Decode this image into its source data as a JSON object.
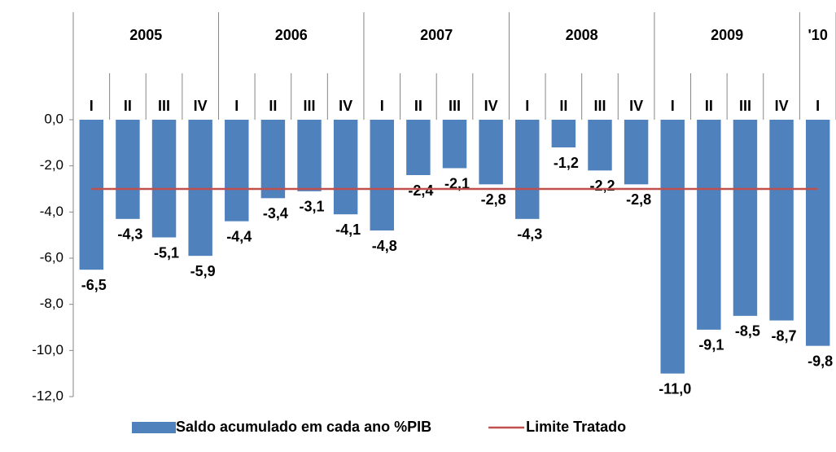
{
  "chart_data": {
    "type": "bar",
    "groups": [
      {
        "label": "2005",
        "categories": [
          "I",
          "II",
          "III",
          "IV"
        ]
      },
      {
        "label": "2006",
        "categories": [
          "I",
          "II",
          "III",
          "IV"
        ]
      },
      {
        "label": "2007",
        "categories": [
          "I",
          "II",
          "III",
          "IV"
        ]
      },
      {
        "label": "2008",
        "categories": [
          "I",
          "II",
          "III",
          "IV"
        ]
      },
      {
        "label": "2009",
        "categories": [
          "I",
          "II",
          "III",
          "IV"
        ]
      },
      {
        "label": "'10",
        "categories": [
          "I"
        ]
      }
    ],
    "series": [
      {
        "name": "Saldo acumulado em cada ano %PIB",
        "type": "bar",
        "color": "#4f81bd",
        "values": [
          -6.5,
          -4.3,
          -5.1,
          -5.9,
          -4.4,
          -3.4,
          -3.1,
          -4.1,
          -4.8,
          -2.4,
          -2.1,
          -2.8,
          -4.3,
          -1.2,
          -2.2,
          -2.8,
          -11.0,
          -9.1,
          -8.5,
          -8.7,
          -9.8
        ],
        "value_labels": [
          "-6,5",
          "-4,3",
          "-5,1",
          "-5,9",
          "-4,4",
          "-3,4",
          "-3,1",
          "-4,1",
          "-4,8",
          "-2,4",
          "-2,1",
          "-2,8",
          "-4,3",
          "-1,2",
          "-2,2",
          "-2,8",
          "-11,0",
          "-9,1",
          "-8,5",
          "-8,7",
          "-9,8"
        ]
      },
      {
        "name": "Limite Tratado",
        "type": "line",
        "color": "#c0504d",
        "values": [
          -3,
          -3,
          -3,
          -3,
          -3,
          -3,
          -3,
          -3,
          -3,
          -3,
          -3,
          -3,
          -3,
          -3,
          -3,
          -3,
          -3,
          -3,
          -3,
          -3,
          -3
        ]
      }
    ],
    "ylim": [
      -12,
      0
    ],
    "yticks": [
      {
        "value": 0,
        "label": "0,0"
      },
      {
        "value": -2,
        "label": "-2,0"
      },
      {
        "value": -4,
        "label": "-4,0"
      },
      {
        "value": -6,
        "label": "-6,0"
      },
      {
        "value": -8,
        "label": "-8,0"
      },
      {
        "value": -10,
        "label": "-10,0"
      },
      {
        "value": -12,
        "label": "-12,0"
      }
    ],
    "grid": false
  }
}
